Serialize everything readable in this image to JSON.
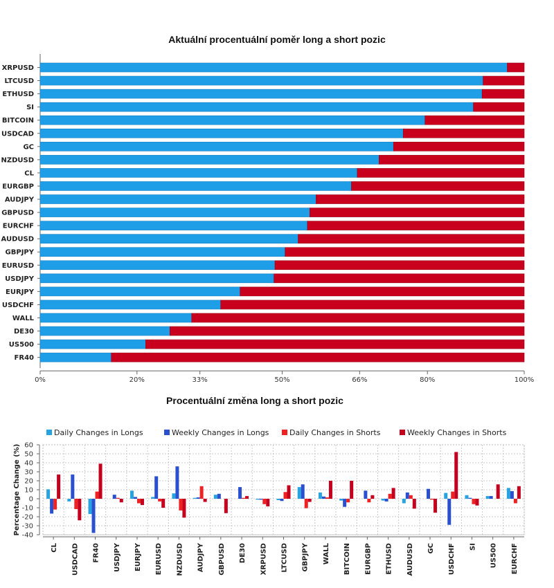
{
  "chart_data": [
    {
      "type": "bar",
      "orientation": "horizontal",
      "stacked": true,
      "title": "Aktuální procentuální poměr long a short pozic",
      "categories": [
        "XRPUSD",
        "LTCUSD",
        "ETHUSD",
        "SI",
        "BITCOIN",
        "USDCAD",
        "GC",
        "NZDUSD",
        "CL",
        "EURGBP",
        "AUDJPY",
        "GBPUSD",
        "EURCHF",
        "AUDUSD",
        "GBPJPY",
        "EURUSD",
        "USDJPY",
        "EURJPY",
        "USDCHF",
        "WALL",
        "DE30",
        "US500",
        "FR40"
      ],
      "series": [
        {
          "values": [
            96.5,
            91.5,
            91.3,
            89.5,
            79.5,
            75,
            73,
            70,
            65.5,
            64.3,
            57,
            55.7,
            55.2,
            53.3,
            50.6,
            48.5,
            48.3,
            41.3,
            37.3,
            31.3,
            26.8,
            21.8,
            14.7
          ]
        },
        {
          "values": [
            3.5,
            8.5,
            8.7,
            10.5,
            20.5,
            25,
            27,
            30,
            34.5,
            35.7,
            43,
            44.3,
            44.8,
            46.7,
            49.4,
            51.5,
            51.7,
            58.7,
            62.7,
            68.7,
            73.2,
            78.2,
            85.3
          ]
        }
      ],
      "colors": [
        "#1f9ee8",
        "#c8001e"
      ],
      "x_ticks": [
        0,
        20,
        33,
        50,
        66,
        80,
        100
      ],
      "x_tick_labels": [
        "0%",
        "20%",
        "33%",
        "50%",
        "66%",
        "80%",
        "100%"
      ],
      "xlim": [
        0,
        100
      ]
    },
    {
      "type": "bar",
      "title": "Procentuální změna long a short pozic",
      "ylabel": "Percentage Change (%)",
      "ylim": [
        -40,
        60
      ],
      "y_ticks": [
        -40,
        -30,
        -20,
        -10,
        0,
        10,
        20,
        30,
        40,
        50,
        60
      ],
      "grid": true,
      "legend_position": "top",
      "categories": [
        "CL",
        "USDCAD",
        "FR40",
        "USDJPY",
        "EURJPY",
        "EURUSD",
        "NZDUSD",
        "AUDJPY",
        "GBPUSD",
        "DE30",
        "XRPUSD",
        "LTCUSD",
        "GBPJPY",
        "WALL",
        "BITCOIN",
        "EURGBP",
        "ETHUSD",
        "AUDUSD",
        "GC",
        "USDCHF",
        "SI",
        "US500",
        "EURCHF"
      ],
      "series": [
        {
          "name": "Daily Changes in Longs",
          "color": "#27a3e0",
          "values": [
            10.5,
            -3,
            -17,
            0,
            9,
            2,
            6,
            1,
            4.5,
            0,
            -1,
            -1.5,
            13,
            7,
            -2,
            0,
            -2,
            -5,
            0,
            6.5,
            4,
            3,
            12
          ]
        },
        {
          "name": "Weekly Changes in Longs",
          "color": "#2a4fcf",
          "values": [
            -16.5,
            27,
            -38,
            4.5,
            2,
            25,
            36,
            1.5,
            5.5,
            13,
            -1,
            -2.5,
            16,
            2.5,
            -9,
            9,
            -3,
            7,
            11,
            -29,
            1,
            3,
            8.5
          ]
        },
        {
          "name": "Daily Changes in Shorts",
          "color": "#ee2222",
          "values": [
            -12,
            -11.5,
            8,
            1,
            -5,
            -3,
            -13,
            14,
            0,
            1,
            -6,
            7.5,
            -10.5,
            1.5,
            -4,
            -4,
            5.5,
            4,
            -1,
            8,
            -6,
            0,
            -5
          ]
        },
        {
          "name": "Weekly Changes in Shorts",
          "color": "#c4001e",
          "values": [
            27,
            -24,
            39,
            -4,
            -7,
            -10,
            -21,
            -3.5,
            -16,
            3,
            -8.5,
            15,
            -3.5,
            20,
            20,
            4,
            12,
            -11,
            -15.5,
            52,
            -7.5,
            16,
            14
          ]
        }
      ]
    }
  ]
}
